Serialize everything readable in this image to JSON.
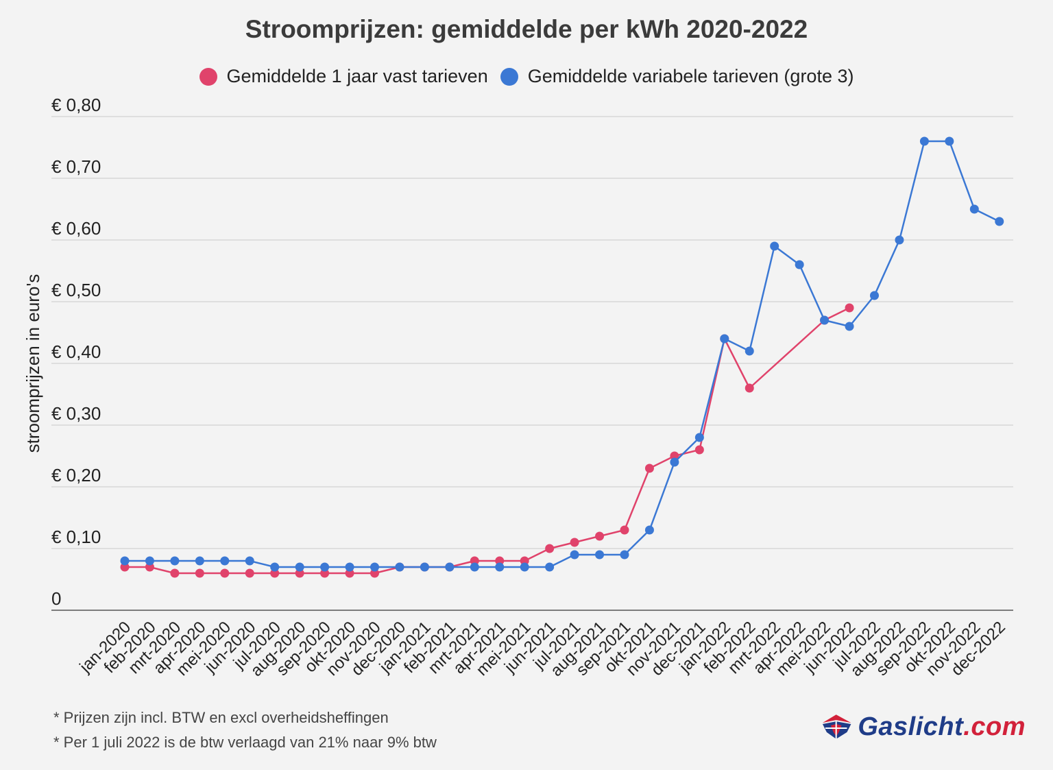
{
  "chart_data": {
    "type": "line",
    "title": "Stroomprijzen: gemiddelde per kWh 2020-2022",
    "ylabel": "stroomprijzen in euro's",
    "xlabel": "",
    "ylim": [
      0,
      0.8
    ],
    "yticks": [
      {
        "value": 0,
        "label": "0"
      },
      {
        "value": 0.1,
        "label": "€ 0,10"
      },
      {
        "value": 0.2,
        "label": "€ 0,20"
      },
      {
        "value": 0.3,
        "label": "€ 0,30"
      },
      {
        "value": 0.4,
        "label": "€ 0,40"
      },
      {
        "value": 0.5,
        "label": "€ 0,50"
      },
      {
        "value": 0.6,
        "label": "€ 0,60"
      },
      {
        "value": 0.7,
        "label": "€ 0,70"
      },
      {
        "value": 0.8,
        "label": "€ 0,80"
      }
    ],
    "grid": true,
    "legend_position": "top",
    "categories": [
      "jan-2020",
      "feb-2020",
      "mrt-2020",
      "apr-2020",
      "mei-2020",
      "jun-2020",
      "jul-2020",
      "aug-2020",
      "sep-2020",
      "okt-2020",
      "nov-2020",
      "dec-2020",
      "jan-2021",
      "feb-2021",
      "mrt-2021",
      "apr-2021",
      "mei-2021",
      "jun-2021",
      "jul-2021",
      "aug-2021",
      "sep-2021",
      "okt-2021",
      "nov-2021",
      "dec-2021",
      "jan-2022",
      "feb-2022",
      "mrt-2022",
      "apr-2022",
      "mei-2022",
      "jun-2022",
      "jul-2022",
      "aug-2022",
      "sep-2022",
      "okt-2022",
      "nov-2022",
      "dec-2022"
    ],
    "series": [
      {
        "name": "Gemiddelde 1 jaar vast tarieven",
        "color": "#e0436b",
        "values": [
          0.07,
          0.07,
          0.06,
          0.06,
          0.06,
          0.06,
          0.06,
          0.06,
          0.06,
          0.06,
          0.06,
          0.07,
          0.07,
          0.07,
          0.08,
          0.08,
          0.08,
          0.1,
          0.11,
          0.12,
          0.13,
          0.23,
          0.25,
          0.26,
          0.44,
          0.36,
          null,
          null,
          0.47,
          0.49,
          null,
          null,
          null,
          null,
          null,
          null
        ]
      },
      {
        "name": "Gemiddelde variabele tarieven (grote 3)",
        "color": "#3b78d4",
        "values": [
          0.08,
          0.08,
          0.08,
          0.08,
          0.08,
          0.08,
          0.07,
          0.07,
          0.07,
          0.07,
          0.07,
          0.07,
          0.07,
          0.07,
          0.07,
          0.07,
          0.07,
          0.07,
          0.09,
          0.09,
          0.09,
          0.13,
          0.24,
          0.28,
          0.44,
          0.42,
          0.59,
          0.56,
          0.47,
          0.46,
          0.51,
          0.6,
          0.76,
          0.76,
          0.65,
          0.63
        ]
      }
    ]
  },
  "footnotes": [
    "* Prijzen zijn incl. BTW en excl overheidsheffingen",
    "* Per 1 juli 2022 is de btw verlaagd van 21% naar 9% btw"
  ],
  "logo": {
    "text_main": "Gaslicht",
    "text_suffix": ".com",
    "icon": "gaslicht-logo-icon"
  }
}
